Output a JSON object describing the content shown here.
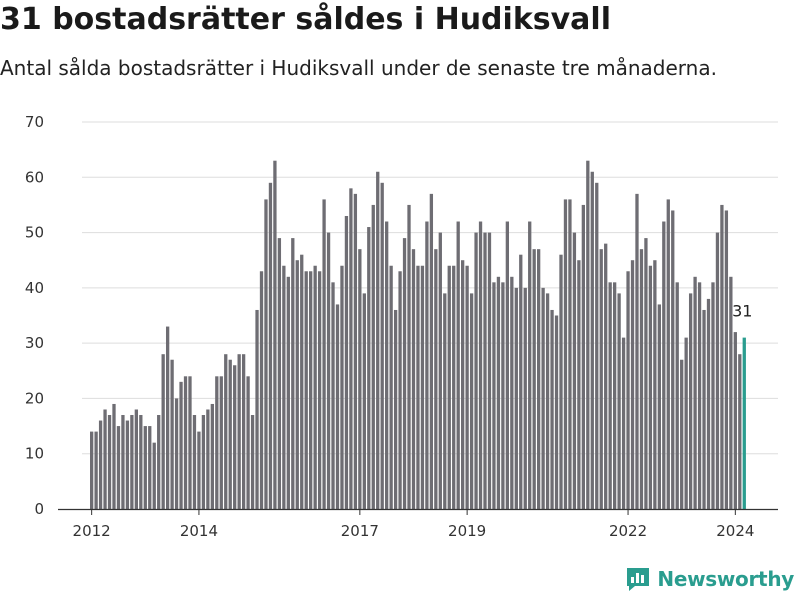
{
  "header": {
    "title": "31 bostadsrätter såldes i Hudiksvall",
    "subtitle": "Antal sålda bostadsrätter i Hudiksvall under de senaste tre månaderna."
  },
  "brand": {
    "name": "Newsworthy"
  },
  "colors": {
    "bar": "#6e6d73",
    "highlight": "#2a9d8f",
    "grid": "#dddddd",
    "axis": "#333333",
    "brand": "#2a9d8f"
  },
  "chart_data": {
    "type": "bar",
    "x_start": "2012-01",
    "x_interval": "month",
    "ylim": [
      0,
      70
    ],
    "yticks": [
      0,
      10,
      20,
      30,
      40,
      50,
      60,
      70
    ],
    "xticks": [
      "2012",
      "2014",
      "2017",
      "2019",
      "2022",
      "2024"
    ],
    "xtick_positions": [
      "2012-01",
      "2014-01",
      "2017-01",
      "2019-01",
      "2022-01",
      "2024-01"
    ],
    "values": [
      14,
      14,
      16,
      18,
      17,
      19,
      15,
      17,
      16,
      17,
      18,
      17,
      15,
      15,
      12,
      17,
      28,
      33,
      27,
      20,
      23,
      24,
      24,
      17,
      14,
      17,
      18,
      19,
      24,
      24,
      28,
      27,
      26,
      28,
      28,
      24,
      17,
      36,
      43,
      56,
      59,
      63,
      49,
      44,
      42,
      49,
      45,
      46,
      43,
      43,
      44,
      43,
      56,
      50,
      41,
      37,
      44,
      53,
      58,
      57,
      47,
      39,
      51,
      55,
      61,
      59,
      52,
      44,
      36,
      43,
      49,
      55,
      47,
      44,
      44,
      52,
      57,
      47,
      50,
      39,
      44,
      44,
      52,
      45,
      44,
      39,
      50,
      52,
      50,
      50,
      41,
      42,
      41,
      52,
      42,
      40,
      46,
      40,
      52,
      47,
      47,
      40,
      39,
      36,
      35,
      46,
      56,
      56,
      50,
      45,
      55,
      63,
      61,
      59,
      47,
      48,
      41,
      41,
      39,
      31,
      43,
      45,
      57,
      47,
      49,
      44,
      45,
      37,
      52,
      56,
      54,
      41,
      27,
      31,
      39,
      42,
      41,
      36,
      38,
      41,
      50,
      55,
      54,
      42,
      32,
      28,
      31
    ],
    "highlight_last": true,
    "last_label": "31",
    "title": "31 bostadsrätter såldes i Hudiksvall",
    "subtitle": "Antal sålda bostadsrätter i Hudiksvall under de senaste tre månaderna.",
    "xlabel": "",
    "ylabel": "",
    "grid": true,
    "legend": "none"
  }
}
